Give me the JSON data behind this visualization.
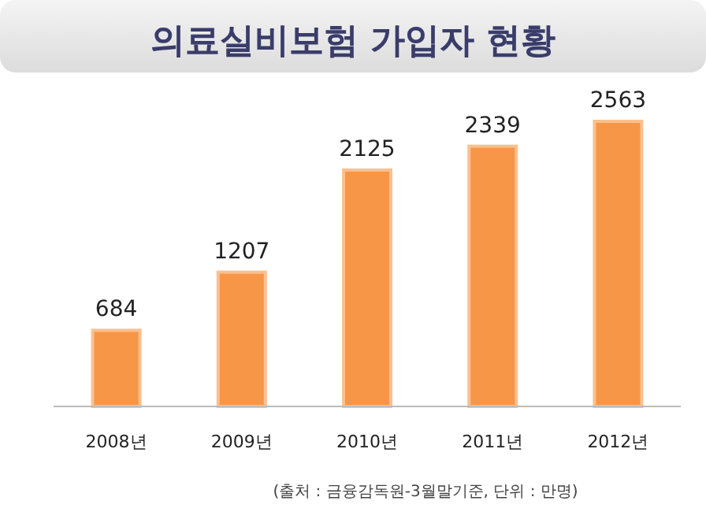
{
  "chart_data": {
    "type": "bar",
    "title": "의료실비보험 가입자 현황",
    "categories": [
      "2008년",
      "2009년",
      "2010년",
      "2011년",
      "2012년"
    ],
    "values": [
      684,
      1207,
      2125,
      2339,
      2563
    ],
    "color": "#f79646",
    "data_labels": true,
    "annotations": [
      "(출처 : 금융감독원-3월말기준, 단위 : 만명)"
    ]
  }
}
